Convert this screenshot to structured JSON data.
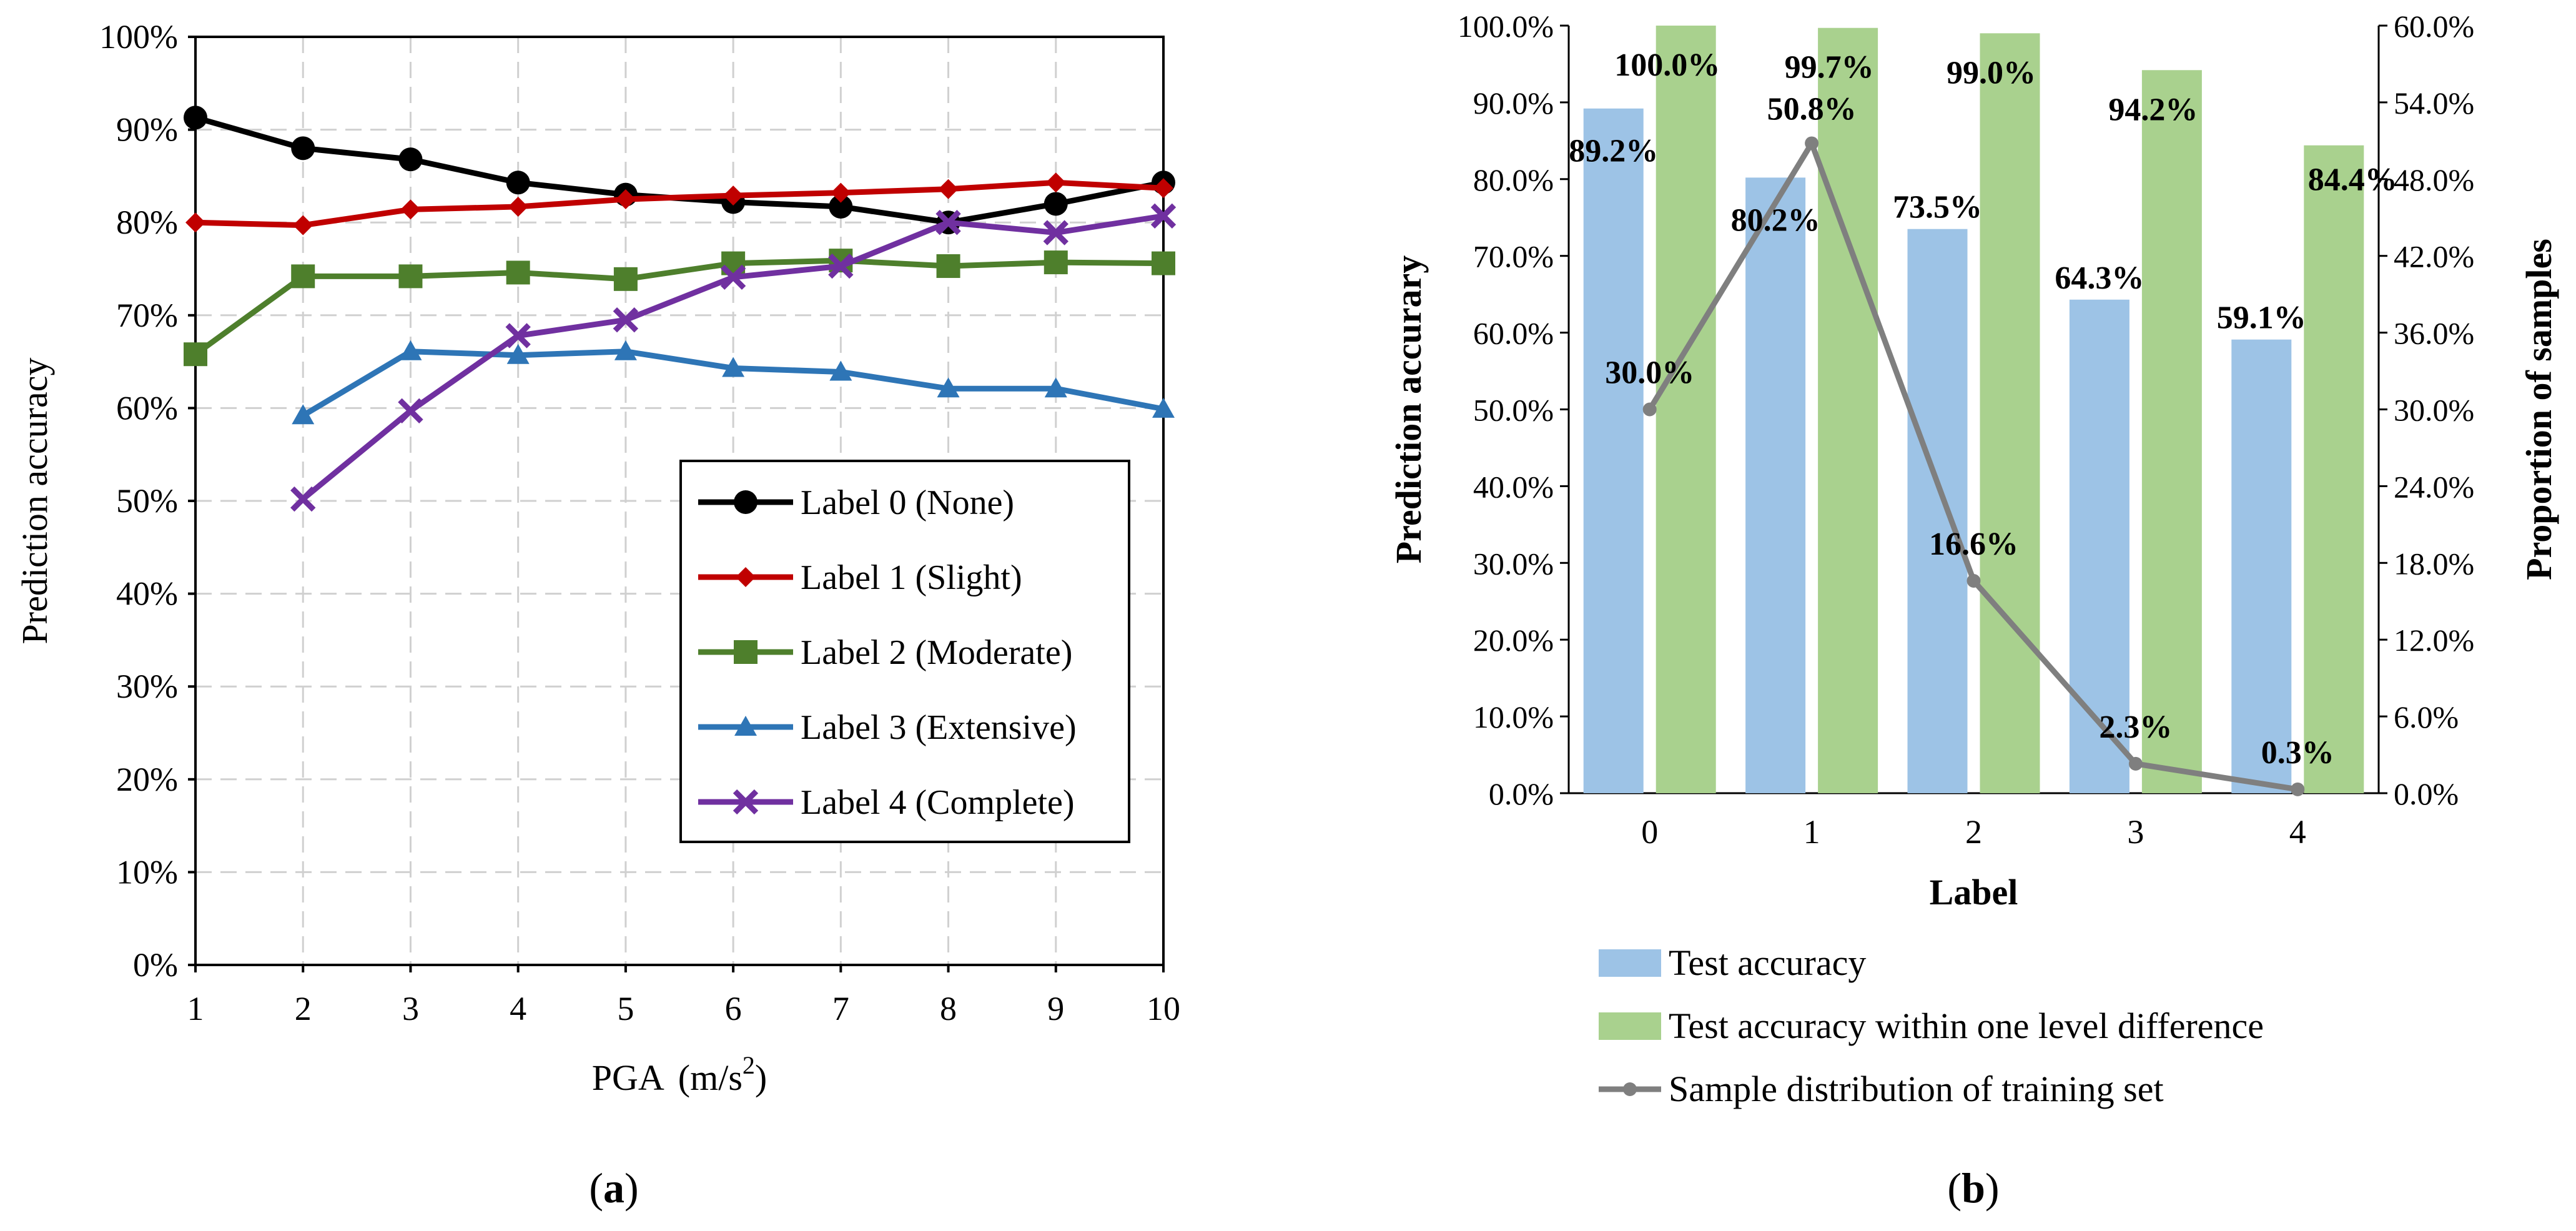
{
  "chart_data": [
    {
      "panel": "(a)",
      "type": "line",
      "xlabel": "PGA",
      "xunit_base": "(m/s",
      "xunit_exp": "2",
      "xunit_close": ")",
      "ylabel": "Prediction accuracy",
      "xlim": [
        1,
        10
      ],
      "ylim": [
        0,
        100
      ],
      "x_ticks": [
        "1",
        "2",
        "3",
        "4",
        "5",
        "6",
        "7",
        "8",
        "9",
        "10"
      ],
      "y_ticks": [
        "0%",
        "10%",
        "20%",
        "30%",
        "40%",
        "50%",
        "60%",
        "70%",
        "80%",
        "90%",
        "100%"
      ],
      "grid": true,
      "legend_position": "center-right",
      "series": [
        {
          "name": "Label 0 (None)",
          "color": "#000000",
          "marker": "circle",
          "x": [
            1,
            2,
            3,
            4,
            5,
            6,
            7,
            8,
            9,
            10
          ],
          "values": [
            91.3,
            88.0,
            86.8,
            84.3,
            83.0,
            82.2,
            81.7,
            80.0,
            82.0,
            84.3
          ]
        },
        {
          "name": "Label 1 (Slight)",
          "color": "#c00000",
          "marker": "diamond",
          "x": [
            1,
            2,
            3,
            4,
            5,
            6,
            7,
            8,
            9,
            10
          ],
          "values": [
            80.0,
            79.7,
            81.4,
            81.7,
            82.5,
            82.9,
            83.2,
            83.6,
            84.3,
            83.7
          ]
        },
        {
          "name": "Label 2 (Moderate)",
          "color": "#4e7f2c",
          "marker": "square",
          "x": [
            1,
            2,
            3,
            4,
            5,
            6,
            7,
            8,
            9,
            10
          ],
          "values": [
            65.8,
            74.2,
            74.2,
            74.6,
            73.9,
            75.6,
            75.9,
            75.3,
            75.7,
            75.6
          ]
        },
        {
          "name": "Label 3 (Extensive)",
          "color": "#2e75b6",
          "marker": "triangle",
          "x": [
            2,
            3,
            4,
            5,
            6,
            7,
            8,
            9,
            10
          ],
          "values": [
            59.2,
            66.1,
            65.7,
            66.1,
            64.3,
            63.9,
            62.1,
            62.1,
            59.9
          ]
        },
        {
          "name": "Label 4 (Complete)",
          "color": "#7030a0",
          "marker": "x",
          "x": [
            2,
            3,
            4,
            5,
            6,
            7,
            8,
            9,
            10
          ],
          "values": [
            50.2,
            59.7,
            67.8,
            69.5,
            74.1,
            75.3,
            80.0,
            78.9,
            80.7
          ]
        }
      ]
    },
    {
      "panel": "(b)",
      "type": "bar",
      "xlabel": "Label",
      "ylabel": "Prediction accurary",
      "y2label": "Proportion of samples",
      "categories": [
        "0",
        "1",
        "2",
        "3",
        "4"
      ],
      "ylim": [
        0,
        100
      ],
      "y2lim": [
        0,
        60
      ],
      "y_ticks": [
        "0.0%",
        "10.0%",
        "20.0%",
        "30.0%",
        "40.0%",
        "50.0%",
        "60.0%",
        "70.0%",
        "80.0%",
        "90.0%",
        "100.0%"
      ],
      "y2_ticks": [
        "0.0%",
        "6.0%",
        "12.0%",
        "18.0%",
        "24.0%",
        "30.0%",
        "36.0%",
        "42.0%",
        "48.0%",
        "54.0%",
        "60.0%"
      ],
      "series": [
        {
          "name": "Test accuracy",
          "type": "bar",
          "axis": "left",
          "color": "#9dc3e6",
          "values": [
            89.2,
            80.2,
            73.5,
            64.3,
            59.1
          ],
          "labels": [
            "89.2%",
            "80.2%",
            "73.5%",
            "64.3%",
            "59.1%"
          ]
        },
        {
          "name": "Test accuracy within one level difference",
          "type": "bar",
          "axis": "left",
          "color": "#a9d18e",
          "values": [
            100.0,
            99.7,
            99.0,
            94.2,
            84.4
          ],
          "labels": [
            "100.0%",
            "99.7%",
            "99.0%",
            "94.2%",
            "84.4%"
          ]
        },
        {
          "name": "Sample distribution of training set",
          "type": "line",
          "axis": "right",
          "color": "#7f7f7f",
          "values": [
            30.0,
            50.8,
            16.6,
            2.3,
            0.3
          ],
          "labels": [
            "30.0%",
            "50.8%",
            "16.6%",
            "2.3%",
            "0.3%"
          ]
        }
      ],
      "legend_position": "bottom"
    }
  ],
  "panel_labels": [
    "(a)",
    "(b)"
  ]
}
